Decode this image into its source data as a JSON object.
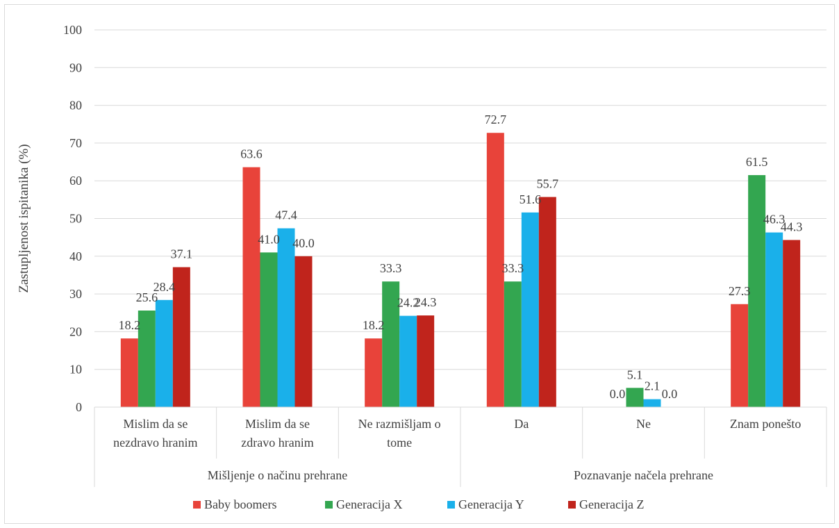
{
  "chart_data": {
    "type": "bar",
    "title": "",
    "ylabel": "Zastupljenost ispitanika (%)",
    "ylim": [
      0,
      100
    ],
    "yticks": [
      0,
      10,
      20,
      30,
      40,
      50,
      60,
      70,
      80,
      90,
      100
    ],
    "grid": true,
    "legend_position": "bottom",
    "categories": [
      [
        "Mislim da se",
        "nezdravo hranim"
      ],
      [
        "Mislim da se",
        "zdravo hranim"
      ],
      [
        "Ne razmišljam o",
        "tome"
      ],
      [
        "Da"
      ],
      [
        "Ne"
      ],
      [
        "Znam ponešto"
      ]
    ],
    "groups": [
      {
        "label": "Mišljenje o načinu prehrane",
        "span": [
          0,
          2
        ]
      },
      {
        "label": "Poznavanje načela prehrane",
        "span": [
          3,
          5
        ]
      }
    ],
    "series": [
      {
        "name": "Baby boomers",
        "color": "#e8433a",
        "values": [
          18.2,
          63.6,
          18.2,
          72.7,
          0.0,
          27.3
        ]
      },
      {
        "name": "Generacija X",
        "color": "#33a650",
        "values": [
          25.6,
          41.0,
          33.3,
          33.3,
          5.1,
          61.5
        ]
      },
      {
        "name": "Generacija Y",
        "color": "#1ab0ea",
        "values": [
          28.4,
          47.4,
          24.2,
          51.6,
          2.1,
          46.3
        ]
      },
      {
        "name": "Generacija Z",
        "color": "#c0241c",
        "values": [
          37.1,
          40.0,
          24.3,
          55.7,
          0.0,
          44.3
        ]
      }
    ],
    "data_labels": [
      [
        "18.2",
        "63.6",
        "18.2",
        "72.7",
        "",
        "27.3"
      ],
      [
        "25.6",
        "41.0",
        "33.3",
        "33.3",
        "5.1",
        "61.5"
      ],
      [
        "28.4",
        "47.4",
        "24.2",
        "51.6",
        "2.1",
        "46.3"
      ],
      [
        "37.1",
        "40.0",
        "24.3",
        "55.7",
        "0.0",
        "44.3"
      ]
    ],
    "extra_labels": [
      "0.0"
    ]
  }
}
